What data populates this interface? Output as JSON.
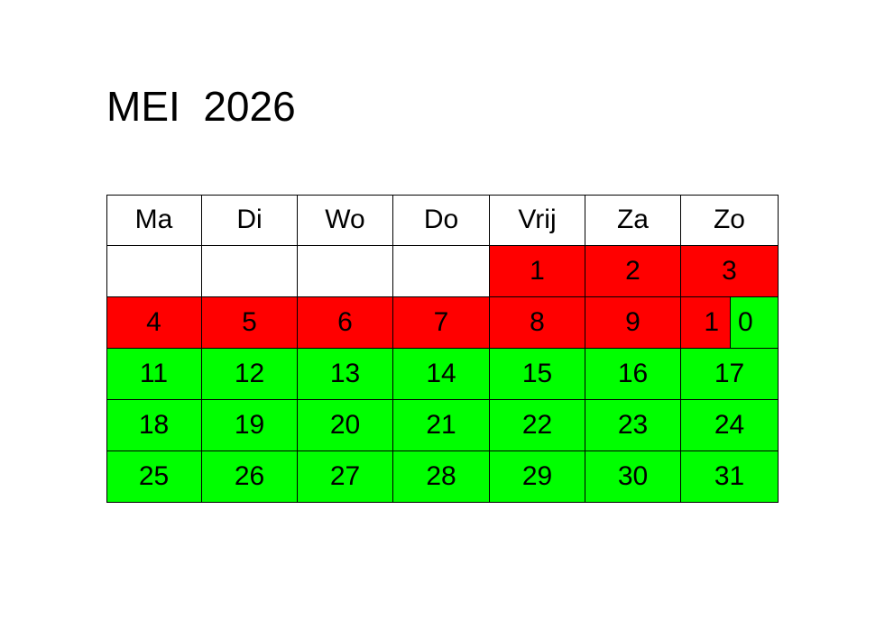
{
  "title": "MEI  2026",
  "colors": {
    "red": "#ff0000",
    "green": "#00ff00",
    "empty": "#ffffff"
  },
  "weekdays": [
    "Ma",
    "Di",
    "Wo",
    "Do",
    "Vrij",
    "Za",
    "Zo"
  ],
  "weeks": [
    [
      {
        "day": "",
        "status": "empty"
      },
      {
        "day": "",
        "status": "empty"
      },
      {
        "day": "",
        "status": "empty"
      },
      {
        "day": "",
        "status": "empty"
      },
      {
        "day": "1",
        "status": "red"
      },
      {
        "day": "2",
        "status": "red"
      },
      {
        "day": "3",
        "status": "red"
      }
    ],
    [
      {
        "day": "4",
        "status": "red"
      },
      {
        "day": "5",
        "status": "red"
      },
      {
        "day": "6",
        "status": "red"
      },
      {
        "day": "7",
        "status": "red"
      },
      {
        "day": "8",
        "status": "red"
      },
      {
        "day": "9",
        "status": "red"
      },
      {
        "day": "10",
        "status": "split",
        "parts": [
          {
            "text": "1",
            "status": "red"
          },
          {
            "text": "0",
            "status": "green"
          }
        ]
      }
    ],
    [
      {
        "day": "11",
        "status": "green"
      },
      {
        "day": "12",
        "status": "green"
      },
      {
        "day": "13",
        "status": "green"
      },
      {
        "day": "14",
        "status": "green"
      },
      {
        "day": "15",
        "status": "green"
      },
      {
        "day": "16",
        "status": "green"
      },
      {
        "day": "17",
        "status": "green"
      }
    ],
    [
      {
        "day": "18",
        "status": "green"
      },
      {
        "day": "19",
        "status": "green"
      },
      {
        "day": "20",
        "status": "green"
      },
      {
        "day": "21",
        "status": "green"
      },
      {
        "day": "22",
        "status": "green"
      },
      {
        "day": "23",
        "status": "green"
      },
      {
        "day": "24",
        "status": "green"
      }
    ],
    [
      {
        "day": "25",
        "status": "green"
      },
      {
        "day": "26",
        "status": "green"
      },
      {
        "day": "27",
        "status": "green"
      },
      {
        "day": "28",
        "status": "green"
      },
      {
        "day": "29",
        "status": "green"
      },
      {
        "day": "30",
        "status": "green"
      },
      {
        "day": "31",
        "status": "green"
      }
    ]
  ]
}
